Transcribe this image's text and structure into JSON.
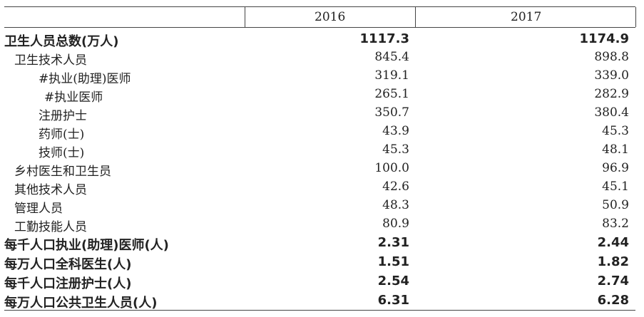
{
  "header": {
    "col1": "2016",
    "col2": "2017"
  },
  "rows": [
    {
      "label": "卫生人员总数(万人)",
      "v2016": "1117.3",
      "v2017": "1174.9",
      "bold": true,
      "indent": 0
    },
    {
      "label": "卫生技术人员",
      "v2016": "845.4",
      "v2017": "898.8",
      "bold": false,
      "indent": 1
    },
    {
      "label": "#执业(助理)医师",
      "v2016": "319.1",
      "v2017": "339.0",
      "bold": false,
      "indent": 2
    },
    {
      "label": "#执业医师",
      "v2016": "265.1",
      "v2017": "282.9",
      "bold": false,
      "indent": 3
    },
    {
      "label": "注册护士",
      "v2016": "350.7",
      "v2017": "380.4",
      "bold": false,
      "indent": 2
    },
    {
      "label": "药师(士)",
      "v2016": "43.9",
      "v2017": "45.3",
      "bold": false,
      "indent": 2
    },
    {
      "label": "技师(士)",
      "v2016": "45.3",
      "v2017": "48.1",
      "bold": false,
      "indent": 2
    },
    {
      "label": "乡村医生和卫生员",
      "v2016": "100.0",
      "v2017": "96.9",
      "bold": false,
      "indent": 1
    },
    {
      "label": "其他技术人员",
      "v2016": "42.6",
      "v2017": "45.1",
      "bold": false,
      "indent": 1
    },
    {
      "label": "管理人员",
      "v2016": "48.3",
      "v2017": "50.9",
      "bold": false,
      "indent": 1
    },
    {
      "label": "工勤技能人员",
      "v2016": "80.9",
      "v2017": "83.2",
      "bold": false,
      "indent": 1
    },
    {
      "label": "每千人口执业(助理)医师(人)",
      "v2016": "2.31",
      "v2017": "2.44",
      "bold": true,
      "indent": 0
    },
    {
      "label": "每万人口全科医生(人)",
      "v2016": "1.51",
      "v2017": "1.82",
      "bold": true,
      "indent": 0
    },
    {
      "label": "每千人口注册护士(人)",
      "v2016": "2.54",
      "v2017": "2.74",
      "bold": true,
      "indent": 0
    },
    {
      "label": "每万人口公共卫生人员(人)",
      "v2016": "6.31",
      "v2017": "6.28",
      "bold": true,
      "indent": 0
    }
  ]
}
